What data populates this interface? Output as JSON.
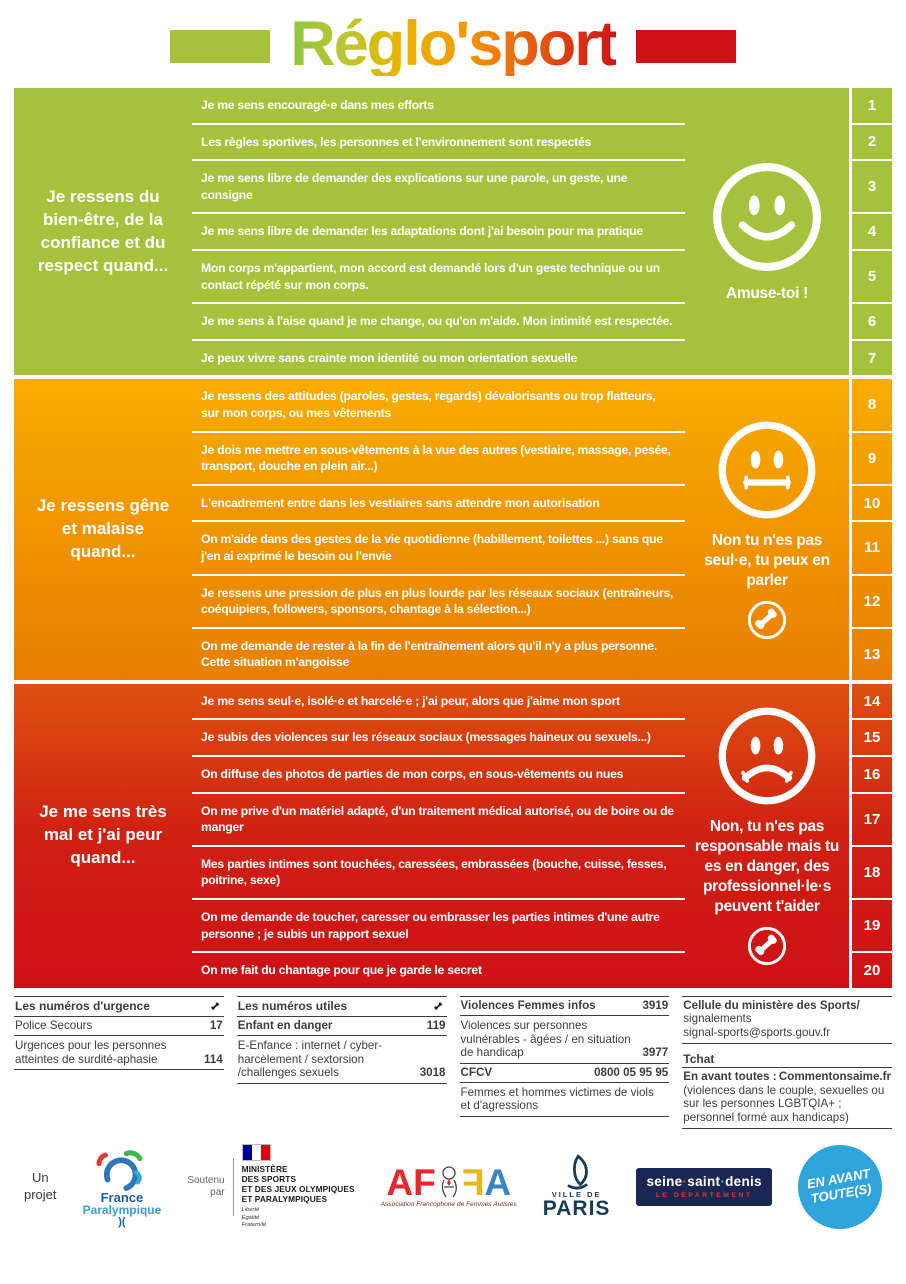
{
  "header": {
    "title": "Réglo'sport",
    "bar_green": "#a6c13c",
    "bar_red": "#ce1116"
  },
  "sections": [
    {
      "id": "green",
      "label": "Je ressens du bien-être, de la confiance et du respect quand...",
      "face": "happy",
      "motivation": "Amuse-toi !",
      "phone": false,
      "colors": [
        "#a6c13c",
        "#a6c13c"
      ],
      "items": [
        {
          "num": "1",
          "text": "Je me sens encouragé·e dans mes efforts"
        },
        {
          "num": "2",
          "text": "Les règles sportives, les personnes et l'environnement sont respectés"
        },
        {
          "num": "3",
          "text": "Je me sens libre de demander des explications sur une parole, un geste, une consigne"
        },
        {
          "num": "4",
          "text": "Je me sens libre de demander les adaptations dont j'ai besoin pour ma pratique"
        },
        {
          "num": "5",
          "text": "Mon corps m'appartient, mon accord est demandé lors d'un geste technique ou un contact répété sur mon corps."
        },
        {
          "num": "6",
          "text": "Je me sens à l'aise quand je me change, ou qu'on m'aide. Mon intimité est respectée."
        },
        {
          "num": "7",
          "text": "Je peux vivre sans crainte mon identité ou mon orientation sexuelle"
        }
      ]
    },
    {
      "id": "orange",
      "label": "Je ressens gêne et malaise quand...",
      "face": "neutral",
      "motivation": "Non tu n'es pas seul·e, tu peux en parler",
      "phone": true,
      "colors": [
        "#f8ac00",
        "#e87e01"
      ],
      "items": [
        {
          "num": "8",
          "text": "Je ressens des attitudes (paroles, gestes, regards) dévalorisants ou trop flatteurs, sur mon corps, ou mes vêtements"
        },
        {
          "num": "9",
          "text": "Je dois me mettre en sous-vêtements à la vue des autres (vestiaire, massage, pesée, transport, douche en plein air...)"
        },
        {
          "num": "10",
          "text": "L'encadrement entre dans les vestiaires sans attendre mon autorisation"
        },
        {
          "num": "11",
          "text": "On m'aide dans des gestes de la vie quotidienne (habillement, toilettes ...) sans que j'en ai exprimé le besoin ou l'envie"
        },
        {
          "num": "12",
          "text": "Je ressens une pression de plus en plus lourde par les réseaux sociaux (entraîneurs, coéquipiers, followers, sponsors, chantage à la sélection...)"
        },
        {
          "num": "13",
          "text": "On me demande de rester à la fin de l'entraînement alors qu'il n'y a plus personne. Cette situation m'angoisse"
        }
      ]
    },
    {
      "id": "red",
      "label": "Je me sens très mal et j'ai peur quand...",
      "face": "sad",
      "motivation": "Non, tu n'es pas responsable mais tu es en danger, des professionnel·le·s peuvent t'aider",
      "phone": true,
      "colors": [
        "#dd500e",
        "#d02013",
        "#ce1116"
      ],
      "items": [
        {
          "num": "14",
          "text": "Je me sens seul·e, isolé·e et harcelé·e ; j'ai peur, alors que j'aime mon sport"
        },
        {
          "num": "15",
          "text": "Je subis des violences sur les réseaux sociaux (messages haineux ou sexuels...)"
        },
        {
          "num": "16",
          "text": "On diffuse des photos de parties de mon corps, en sous-vêtements ou nues"
        },
        {
          "num": "17",
          "text": "On me prive d'un matériel adapté, d'un traitement médical autorisé, ou de boire ou de manger"
        },
        {
          "num": "18",
          "text": "Mes parties intimes sont touchées, caressées, embrassées (bouche, cuisse, fesses, poitrine, sexe)"
        },
        {
          "num": "19",
          "text": "On me demande de toucher, caresser ou embrasser les parties intimes d'une autre personne ; je subis un rapport sexuel"
        },
        {
          "num": "20",
          "text": "On me fait du chantage pour que je garde le secret"
        }
      ]
    }
  ],
  "footer": {
    "groups": [
      {
        "title": "Les numéros d'urgence",
        "phone_icon": true,
        "entries": [
          {
            "label": "Police Secours",
            "number": "17",
            "bold": false
          },
          {
            "label": "Urgences pour les personnes atteintes de surdité-aphasie",
            "number": "114",
            "bold": false
          }
        ]
      },
      {
        "title": "Les numéros utiles",
        "phone_icon": true,
        "entries": [
          {
            "label": "Enfant en danger",
            "number": "119",
            "bold": true
          },
          {
            "label": "E-Enfance : internet / cyber-harcèlement / sextorsion /challenges sexuels",
            "number": "3018",
            "bold": false
          }
        ]
      },
      {
        "title": "",
        "phone_icon": false,
        "entries": [
          {
            "label": "Violences Femmes infos",
            "number": "3919",
            "bold": true
          },
          {
            "label": "Violences sur personnes vulnérables - âgées / en situation de handicap",
            "number": "3977",
            "bold": false
          },
          {
            "label": "CFCV",
            "number": "0800 05 95 95",
            "bold": true
          },
          {
            "label": "Femmes et hommes victimes de viols et d'agressions",
            "number": "",
            "bold": false
          }
        ]
      }
    ],
    "ministry_cell": {
      "title_bold": "Cellule du ministère des Sports/",
      "title_rest": "signalements",
      "email": "signal-sports@sports.gouv.fr",
      "tchat_label": "Tchat",
      "chat_bold": "En avant toutes :",
      "chat_site": "Commentonsaime.fr",
      "chat_note": "(violences dans le couple, sexuelles ou sur les personnes LGBTQIA+ ; personnel formé aux handicaps)"
    }
  },
  "partners": {
    "project_line1": "Un",
    "project_line2": "projet",
    "paralympique_name1": "France",
    "paralympique_name2": "Paralympique",
    "paralympique_tail": ")(",
    "soutenu_line1": "Soutenu",
    "soutenu_line2": "par",
    "ministere_lines": [
      "MINISTÈRE",
      "DES SPORTS",
      "ET DES JEUX OLYMPIQUES",
      "ET PARALYMPIQUES"
    ],
    "devise": [
      "Liberté",
      "Égalité",
      "Fraternité"
    ],
    "affa_caption": "Association Francophone de Femmes Autistes",
    "paris_line1": "VILLE DE",
    "paris_line2": "PARIS",
    "ssd_main_parts": [
      "seine",
      "saint",
      "denis"
    ],
    "ssd_sub": "LE DÉPARTEMENT",
    "badge_line1": "EN AVANT",
    "badge_line2": "TOUTE(S)"
  }
}
